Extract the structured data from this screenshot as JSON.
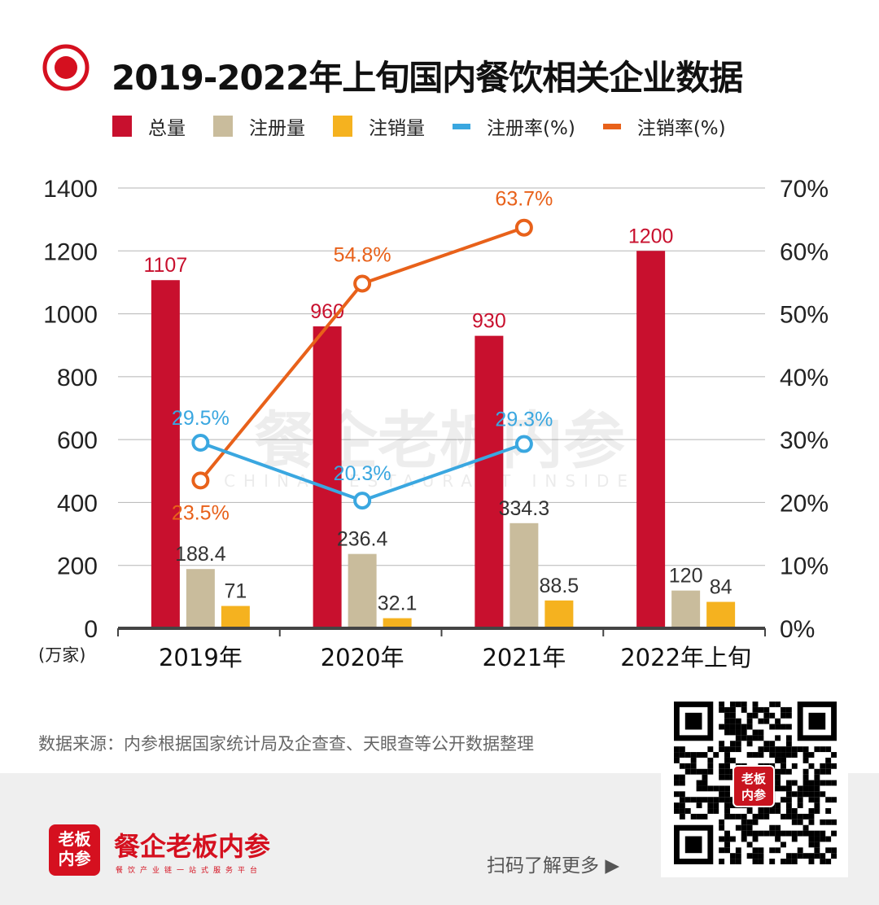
{
  "title": "2019-2022年上旬国内餐饮相关企业数据",
  "legend": [
    {
      "label": "总量",
      "color": "#c8102e",
      "kind": "bar"
    },
    {
      "label": "注册量",
      "color": "#c9bc9c",
      "kind": "bar"
    },
    {
      "label": "注销量",
      "color": "#f5b21f",
      "kind": "bar"
    },
    {
      "label": "注册率(%)",
      "color": "#3aa7e0",
      "kind": "line"
    },
    {
      "label": "注销率(%)",
      "color": "#e8611a",
      "kind": "line"
    }
  ],
  "chart_data": {
    "type": "bar",
    "title": "2019-2022年上旬国内餐饮相关企业数据",
    "categories": [
      "2019年",
      "2020年",
      "2021年",
      "2022年上旬"
    ],
    "ylabel": "(万家)",
    "ylim": [
      0,
      1400
    ],
    "y_ticks": [
      "0",
      "200",
      "400",
      "600",
      "800",
      "1000",
      "1200",
      "1400"
    ],
    "y2lim": [
      0,
      70
    ],
    "y2_ticks": [
      "0%",
      "10%",
      "20%",
      "30%",
      "40%",
      "50%",
      "60%",
      "70%"
    ],
    "grid": true,
    "legend_position": "top",
    "series": [
      {
        "name": "总量",
        "type": "bar",
        "axis": "left",
        "values": [
          1107,
          960,
          930,
          1200
        ],
        "labels": [
          "1107",
          "960",
          "930",
          "1200"
        ]
      },
      {
        "name": "注册量",
        "type": "bar",
        "axis": "left",
        "values": [
          188.4,
          236.4,
          334.3,
          120
        ],
        "labels": [
          "188.4",
          "236.4",
          "334.3",
          "120"
        ]
      },
      {
        "name": "注销量",
        "type": "bar",
        "axis": "left",
        "values": [
          71,
          32.1,
          88.5,
          84
        ],
        "labels": [
          "71",
          "32.1",
          "88.5",
          "84"
        ]
      },
      {
        "name": "注册率(%)",
        "type": "line",
        "axis": "right",
        "values": [
          29.5,
          20.3,
          29.3,
          null
        ],
        "labels": [
          "29.5%",
          "20.3%",
          "29.3%",
          null
        ]
      },
      {
        "name": "注销率(%)",
        "type": "line",
        "axis": "right",
        "values": [
          23.5,
          54.8,
          63.7,
          null
        ],
        "labels": [
          "23.5%",
          "54.8%",
          "63.7%",
          null
        ]
      }
    ]
  },
  "watermark": {
    "text": "餐企老板内参",
    "subtext": "CHINA RESTAURANT INSIDER"
  },
  "source": "数据来源：内参根据国家统计局及企查查、天眼查等公开数据整理",
  "footer": {
    "logo_text": "老板内参",
    "brand": "餐企老板内参",
    "tagline": "餐饮产业链一站式服务平台",
    "scan_text": "扫码了解更多",
    "qr_badge": "老板内参"
  }
}
